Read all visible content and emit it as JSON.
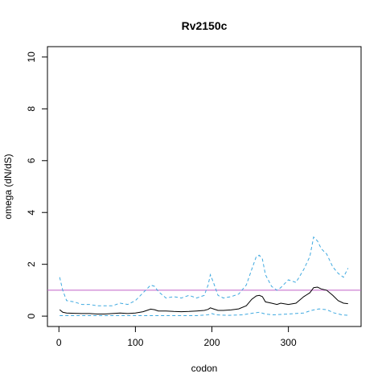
{
  "chart_data": {
    "type": "line",
    "title": "Rv2150c",
    "xlabel": "codon",
    "ylabel": "omega (dN/dS)",
    "xlim": [
      -15,
      395
    ],
    "ylim": [
      -0.4,
      10.4
    ],
    "xticks": [
      0,
      100,
      200,
      300
    ],
    "yticks": [
      0,
      2,
      4,
      6,
      8,
      10
    ],
    "grid": false,
    "colors": {
      "median": "#000000",
      "bounds": "#3fa9e0",
      "reference": "#c060c8"
    },
    "reference_line": {
      "y": 1.0
    },
    "series": [
      {
        "key": "upper",
        "style": "dashed",
        "x": [
          1,
          5,
          10,
          20,
          30,
          40,
          50,
          60,
          70,
          80,
          90,
          100,
          110,
          115,
          120,
          125,
          130,
          140,
          150,
          160,
          170,
          180,
          190,
          195,
          198,
          202,
          208,
          215,
          225,
          235,
          245,
          252,
          258,
          262,
          266,
          270,
          278,
          285,
          290,
          300,
          310,
          320,
          328,
          333,
          338,
          343,
          350,
          358,
          365,
          372,
          378
        ],
        "y": [
          1.5,
          1.0,
          0.6,
          0.55,
          0.45,
          0.45,
          0.4,
          0.4,
          0.4,
          0.5,
          0.45,
          0.6,
          0.9,
          1.05,
          1.2,
          1.15,
          0.95,
          0.7,
          0.75,
          0.7,
          0.8,
          0.7,
          0.8,
          1.2,
          1.6,
          1.3,
          0.8,
          0.7,
          0.75,
          0.85,
          1.2,
          1.8,
          2.3,
          2.35,
          2.2,
          1.6,
          1.15,
          1.0,
          1.1,
          1.4,
          1.3,
          1.8,
          2.3,
          3.05,
          2.9,
          2.6,
          2.4,
          1.9,
          1.65,
          1.5,
          1.85
        ]
      },
      {
        "key": "median",
        "style": "solid",
        "x": [
          1,
          5,
          10,
          20,
          30,
          40,
          50,
          60,
          70,
          80,
          90,
          100,
          110,
          115,
          120,
          125,
          130,
          140,
          150,
          160,
          170,
          180,
          190,
          195,
          198,
          202,
          208,
          215,
          225,
          235,
          245,
          252,
          258,
          262,
          266,
          270,
          278,
          285,
          290,
          300,
          310,
          320,
          328,
          333,
          338,
          343,
          350,
          358,
          365,
          372,
          378
        ],
        "y": [
          0.25,
          0.15,
          0.12,
          0.11,
          0.1,
          0.1,
          0.08,
          0.08,
          0.1,
          0.12,
          0.1,
          0.12,
          0.17,
          0.22,
          0.27,
          0.25,
          0.2,
          0.2,
          0.18,
          0.17,
          0.18,
          0.2,
          0.22,
          0.26,
          0.32,
          0.28,
          0.22,
          0.22,
          0.24,
          0.28,
          0.4,
          0.65,
          0.78,
          0.8,
          0.75,
          0.55,
          0.5,
          0.45,
          0.5,
          0.45,
          0.5,
          0.75,
          0.9,
          1.1,
          1.12,
          1.05,
          1.0,
          0.8,
          0.6,
          0.5,
          0.48
        ]
      },
      {
        "key": "lower",
        "style": "dashed",
        "x": [
          1,
          20,
          40,
          60,
          80,
          100,
          120,
          140,
          160,
          180,
          195,
          200,
          205,
          220,
          240,
          255,
          262,
          270,
          280,
          300,
          320,
          330,
          340,
          350,
          360,
          370,
          378
        ],
        "y": [
          0.02,
          0.02,
          0.02,
          0.02,
          0.02,
          0.02,
          0.02,
          0.02,
          0.02,
          0.02,
          0.05,
          0.1,
          0.05,
          0.03,
          0.05,
          0.12,
          0.15,
          0.08,
          0.05,
          0.08,
          0.12,
          0.22,
          0.28,
          0.25,
          0.12,
          0.05,
          0.03
        ]
      }
    ]
  }
}
